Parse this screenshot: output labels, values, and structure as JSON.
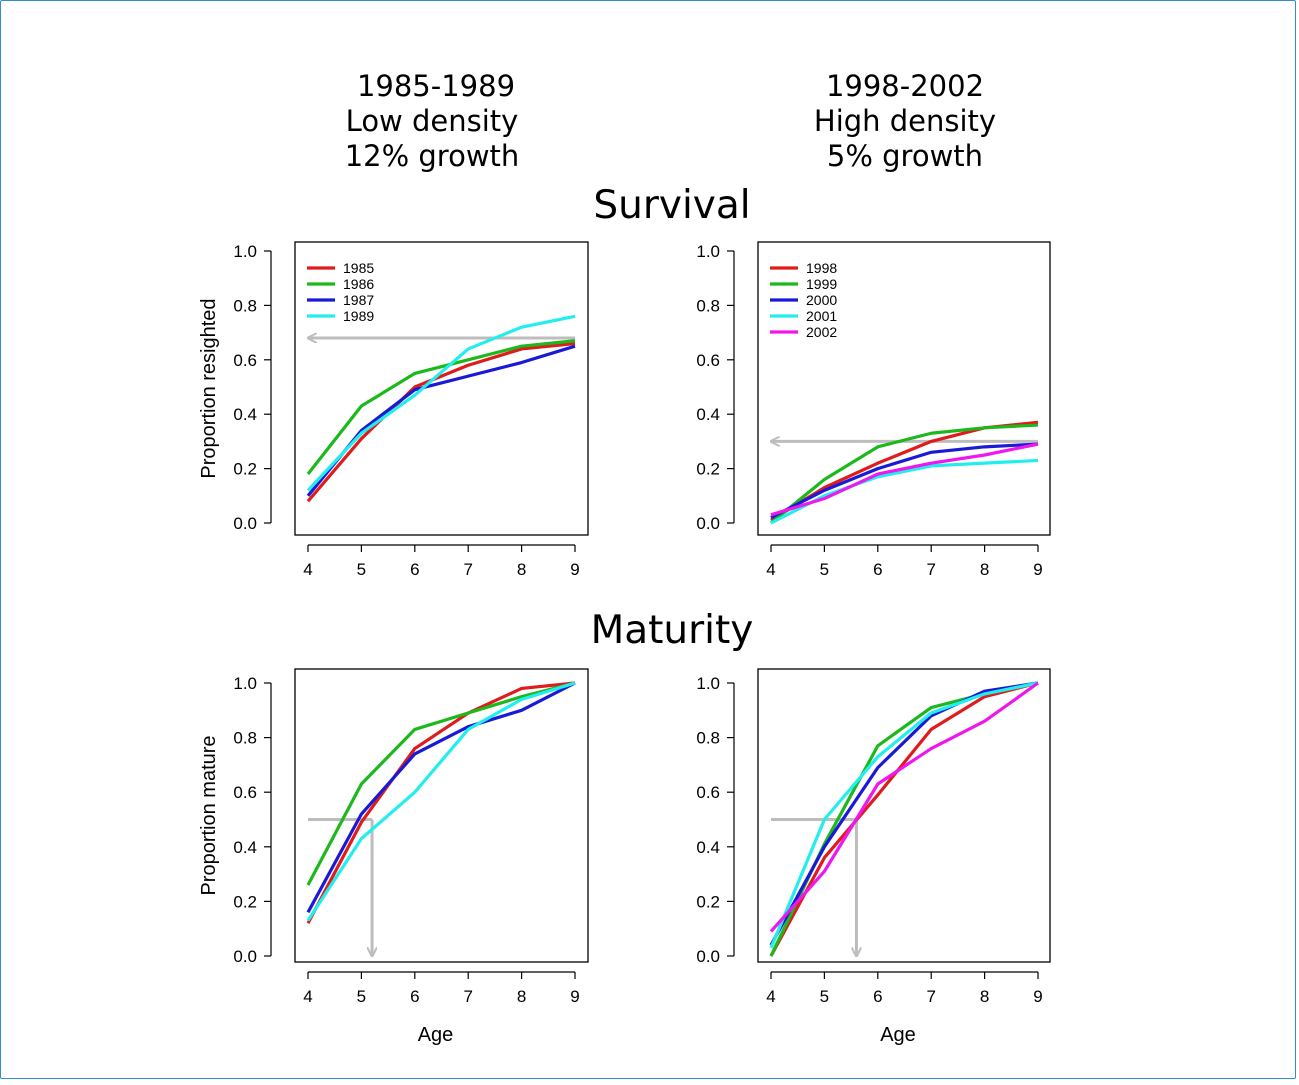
{
  "headers": {
    "left": [
      "1985-1989",
      "Low density",
      "12% growth"
    ],
    "right": [
      "1998-2002",
      "High density",
      "5% growth"
    ]
  },
  "sections": {
    "top": "Survival",
    "bottom": "Maturity"
  },
  "colors": {
    "1985": "#e01b1b",
    "1986": "#1cb81c",
    "1987": "#1a1ad6",
    "1989": "#22eeee",
    "1998": "#e01b1b",
    "1999": "#1cb81c",
    "2000": "#1a1ad6",
    "2001": "#22eeee",
    "2002": "#ee18ee",
    "reference": "#bdbdbd"
  },
  "chart_data": [
    {
      "id": "survival-low",
      "type": "line",
      "xlabel": "",
      "ylabel": "Proportion resighted",
      "x": [
        4,
        5,
        6,
        7,
        8,
        9
      ],
      "xlim": [
        4,
        9
      ],
      "ylim": [
        0,
        1
      ],
      "x_ticks": [
        "4",
        "5",
        "6",
        "7",
        "8",
        "9"
      ],
      "y_ticks": [
        "0.0",
        "0.2",
        "0.4",
        "0.6",
        "0.8",
        "1.0"
      ],
      "grid": false,
      "legend_position": "top-left",
      "series": [
        {
          "name": "1985",
          "values": [
            0.08,
            0.31,
            0.5,
            0.58,
            0.64,
            0.66
          ]
        },
        {
          "name": "1986",
          "values": [
            0.18,
            0.43,
            0.55,
            0.6,
            0.65,
            0.67
          ]
        },
        {
          "name": "1987",
          "values": [
            0.1,
            0.34,
            0.49,
            0.54,
            0.59,
            0.65
          ]
        },
        {
          "name": "1989",
          "values": [
            0.12,
            0.33,
            0.47,
            0.64,
            0.72,
            0.76
          ]
        }
      ],
      "reference_arrows": [
        {
          "from": [
            9,
            0.68
          ],
          "to": [
            4,
            0.68
          ]
        }
      ]
    },
    {
      "id": "survival-high",
      "type": "line",
      "xlabel": "",
      "ylabel": "",
      "x": [
        4,
        5,
        6,
        7,
        8,
        9
      ],
      "xlim": [
        4,
        9
      ],
      "ylim": [
        0,
        1
      ],
      "x_ticks": [
        "4",
        "5",
        "6",
        "7",
        "8",
        "9"
      ],
      "y_ticks": [
        "0.0",
        "0.2",
        "0.4",
        "0.6",
        "0.8",
        "1.0"
      ],
      "grid": false,
      "legend_position": "top-left",
      "series": [
        {
          "name": "1998",
          "values": [
            0.01,
            0.13,
            0.22,
            0.3,
            0.35,
            0.37
          ]
        },
        {
          "name": "1999",
          "values": [
            0.0,
            0.16,
            0.28,
            0.33,
            0.35,
            0.36
          ]
        },
        {
          "name": "2000",
          "values": [
            0.02,
            0.12,
            0.2,
            0.26,
            0.28,
            0.29
          ]
        },
        {
          "name": "2001",
          "values": [
            0.0,
            0.1,
            0.17,
            0.21,
            0.22,
            0.23
          ]
        },
        {
          "name": "2002",
          "values": [
            0.03,
            0.09,
            0.18,
            0.22,
            0.25,
            0.29
          ]
        }
      ],
      "reference_arrows": [
        {
          "from": [
            9,
            0.3
          ],
          "to": [
            4,
            0.3
          ]
        }
      ]
    },
    {
      "id": "maturity-low",
      "type": "line",
      "xlabel": "Age",
      "ylabel": "Proportion mature",
      "x": [
        4,
        5,
        6,
        7,
        8,
        9
      ],
      "xlim": [
        4,
        9
      ],
      "ylim": [
        0,
        1
      ],
      "x_ticks": [
        "4",
        "5",
        "6",
        "7",
        "8",
        "9"
      ],
      "y_ticks": [
        "0.0",
        "0.2",
        "0.4",
        "0.6",
        "0.8",
        "1.0"
      ],
      "grid": false,
      "series": [
        {
          "name": "1985",
          "values": [
            0.12,
            0.49,
            0.76,
            0.89,
            0.98,
            1.0
          ]
        },
        {
          "name": "1986",
          "values": [
            0.26,
            0.63,
            0.83,
            0.89,
            0.95,
            1.0
          ]
        },
        {
          "name": "1987",
          "values": [
            0.16,
            0.52,
            0.74,
            0.84,
            0.9,
            1.0
          ]
        },
        {
          "name": "1989",
          "values": [
            0.13,
            0.43,
            0.6,
            0.83,
            0.94,
            1.0
          ]
        }
      ],
      "reference_lines": [
        {
          "from": [
            4,
            0.5
          ],
          "to": [
            5.2,
            0.5
          ]
        }
      ],
      "reference_arrows": [
        {
          "from": [
            5.2,
            0.5
          ],
          "to": [
            5.2,
            0.0
          ]
        }
      ]
    },
    {
      "id": "maturity-high",
      "type": "line",
      "xlabel": "Age",
      "ylabel": "",
      "x": [
        4,
        5,
        6,
        7,
        8,
        9
      ],
      "xlim": [
        4,
        9
      ],
      "ylim": [
        0,
        1
      ],
      "x_ticks": [
        "4",
        "5",
        "6",
        "7",
        "8",
        "9"
      ],
      "y_ticks": [
        "0.0",
        "0.2",
        "0.4",
        "0.6",
        "0.8",
        "1.0"
      ],
      "grid": false,
      "series": [
        {
          "name": "1998",
          "values": [
            0.0,
            0.36,
            0.59,
            0.83,
            0.95,
            1.0
          ]
        },
        {
          "name": "1999",
          "values": [
            0.0,
            0.41,
            0.77,
            0.91,
            0.96,
            1.0
          ]
        },
        {
          "name": "2000",
          "values": [
            0.04,
            0.4,
            0.69,
            0.88,
            0.97,
            1.0
          ]
        },
        {
          "name": "2001",
          "values": [
            0.03,
            0.5,
            0.73,
            0.89,
            0.96,
            1.0
          ]
        },
        {
          "name": "2002",
          "values": [
            0.09,
            0.31,
            0.63,
            0.76,
            0.86,
            1.0
          ]
        }
      ],
      "reference_lines": [
        {
          "from": [
            4,
            0.5
          ],
          "to": [
            5.6,
            0.5
          ]
        }
      ],
      "reference_arrows": [
        {
          "from": [
            5.6,
            0.5
          ],
          "to": [
            5.6,
            0.0
          ]
        }
      ]
    }
  ]
}
